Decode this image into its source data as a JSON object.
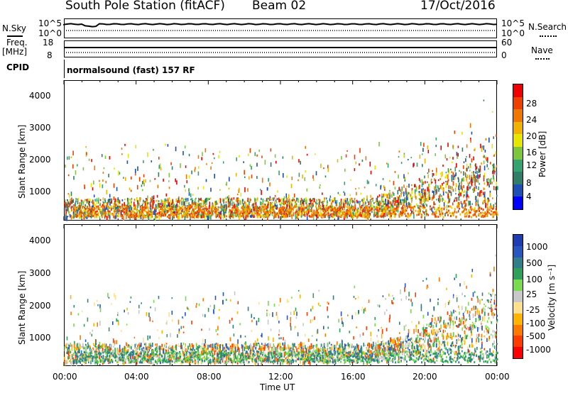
{
  "header": {
    "station": "South Pole Station (fitACF)",
    "beam": "Beam 02",
    "date": "17/Oct/2016"
  },
  "top_panels": {
    "nsky_label": "N.Sky",
    "nsearch_label": "N.Search",
    "nsky_ticks": [
      "10^5",
      "10^0"
    ],
    "nsearch_ticks": [
      "10^5",
      "10^0"
    ],
    "freq_label": "Freq.",
    "freq_unit": "[MHz]",
    "freq_ticks": [
      "18",
      "8"
    ],
    "nave_label": "Nave",
    "nave_ticks": [
      "60",
      "0"
    ],
    "cpid_label": "CPID",
    "cpid_text": "normalsound (fast) 157 RF"
  },
  "colors": {
    "power": [
      "#0000ff",
      "#1e4fb4",
      "#2f7f68",
      "#35a36f",
      "#7cc83c",
      "#e6e600",
      "#f0b400",
      "#f07800",
      "#f04000",
      "#f00000"
    ],
    "velocity": [
      "#ff0000",
      "#ff3c00",
      "#ff7800",
      "#ffb400",
      "#ffe08c",
      "#c8c8c8",
      "#78dc4e",
      "#2fa05a",
      "#2f7e8a",
      "#2855c0",
      "#1e3cb4"
    ]
  },
  "chart_data": [
    {
      "type": "heatmap",
      "ylabel": "Slant Range [km]",
      "xlim_hours": [
        0,
        24
      ],
      "ylim": [
        180,
        4600
      ],
      "yticks": [
        "4000",
        "3000",
        "2000",
        "1000"
      ],
      "colorbar": {
        "label": "Power [dB]",
        "ticks": [
          "28",
          "24",
          "20",
          "16",
          "12",
          "8",
          "4"
        ],
        "range": [
          0,
          30
        ]
      }
    },
    {
      "type": "heatmap",
      "ylabel": "Slant Range [km]",
      "xlabel": "Time UT",
      "xlim_hours": [
        0,
        24
      ],
      "ylim": [
        180,
        4600
      ],
      "xticks": [
        "00:00",
        "04:00",
        "08:00",
        "12:00",
        "16:00",
        "20:00",
        "00:00"
      ],
      "yticks": [
        "4000",
        "3000",
        "2000",
        "1000"
      ],
      "colorbar": {
        "label": "Velocity [m s⁻¹]",
        "ticks": [
          "1000",
          "500",
          "100",
          "25",
          "-25",
          "-100",
          "-500",
          "-1000"
        ],
        "range": [
          -1000,
          1000
        ]
      }
    }
  ]
}
